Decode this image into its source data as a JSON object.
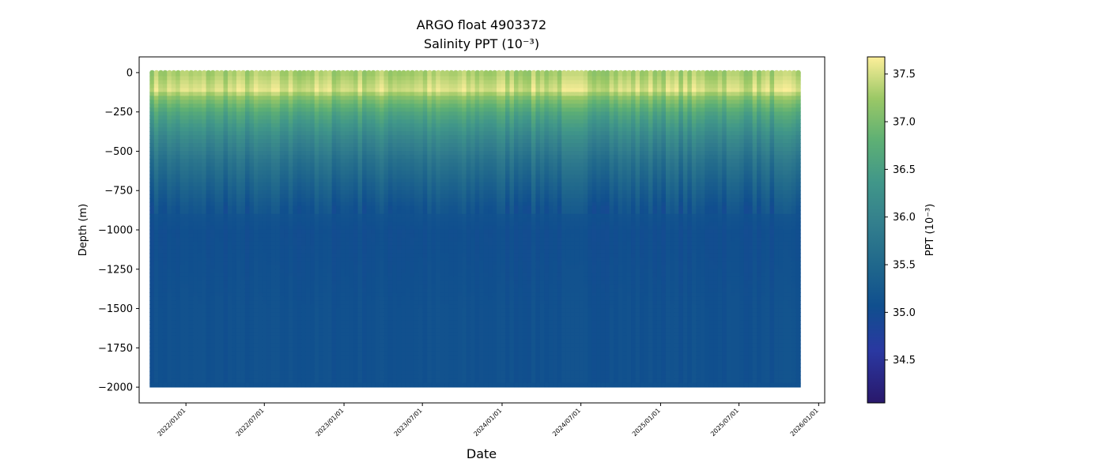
{
  "title": "ARGO float 4903372",
  "subtitle": "Salinity PPT (10⁻³)",
  "chart_data": {
    "type": "heatmap",
    "title": "ARGO float 4903372",
    "subtitle": "Salinity PPT (10⁻³)",
    "xlabel": "Date",
    "ylabel": "Depth (m)",
    "colorbar_label": "PPT (10⁻³)",
    "xlim": [
      "2021-09-15",
      "2026-01-15"
    ],
    "ylim": [
      -2100,
      100
    ],
    "clim": [
      34.05,
      37.68
    ],
    "colormap": "haline",
    "x_ticks": [
      "2022/01/01",
      "2022/07/01",
      "2023/01/01",
      "2023/07/01",
      "2024/01/01",
      "2024/07/01",
      "2025/01/01",
      "2025/07/01",
      "2026/01/01"
    ],
    "y_ticks": [
      0,
      -250,
      -500,
      -750,
      -1000,
      -1250,
      -1500,
      -1750,
      -2000
    ],
    "colorbar_ticks": [
      34.5,
      35.0,
      35.5,
      36.0,
      36.5,
      37.0,
      37.5
    ],
    "profile_date_range": [
      "2021-10-15",
      "2025-11-15"
    ],
    "max_depth": -2000,
    "salinity_by_depth": [
      {
        "depth": 0,
        "salinity": 37.3
      },
      {
        "depth": -100,
        "salinity": 37.5
      },
      {
        "depth": -150,
        "salinity": 37.1
      },
      {
        "depth": -250,
        "salinity": 36.6
      },
      {
        "depth": -400,
        "salinity": 36.1
      },
      {
        "depth": -550,
        "salinity": 35.7
      },
      {
        "depth": -700,
        "salinity": 35.4
      },
      {
        "depth": -850,
        "salinity": 35.15
      },
      {
        "depth": -1000,
        "salinity": 35.05
      },
      {
        "depth": -1250,
        "salinity": 35.07
      },
      {
        "depth": -1500,
        "salinity": 35.1
      },
      {
        "depth": -1750,
        "salinity": 35.1
      },
      {
        "depth": -2000,
        "salinity": 35.1
      }
    ]
  }
}
